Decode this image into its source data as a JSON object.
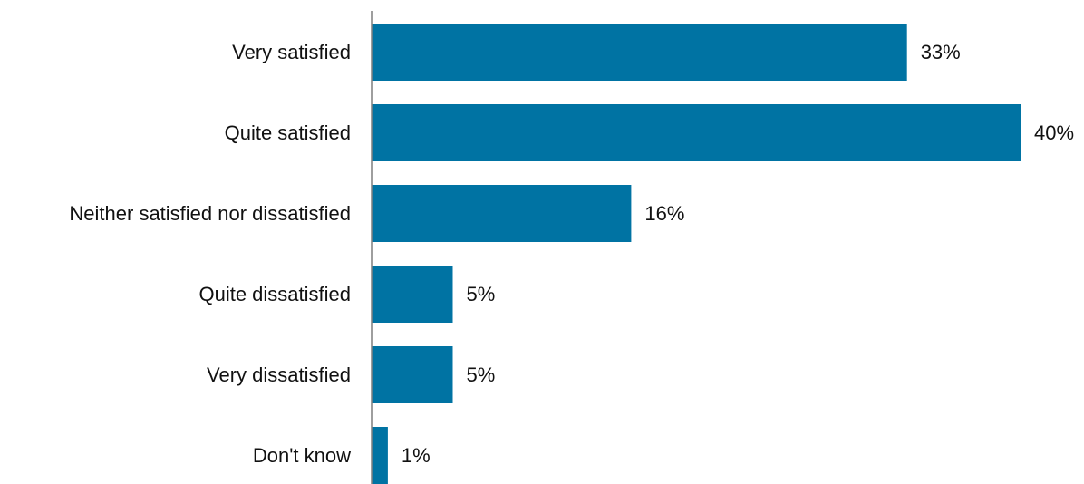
{
  "chart_data": {
    "type": "bar",
    "orientation": "horizontal",
    "categories": [
      "Very satisfied",
      "Quite satisfied",
      "Neither satisfied nor dissatisfied",
      "Quite dissatisfied",
      "Very dissatisfied",
      "Don't know"
    ],
    "values": [
      33,
      40,
      16,
      5,
      5,
      1
    ],
    "value_labels": [
      "33%",
      "40%",
      "16%",
      "5%",
      "5%",
      "1%"
    ],
    "unit": "%",
    "xlim": [
      0,
      40
    ],
    "grid": false,
    "legend": "none",
    "bar_color": "#0073a3"
  }
}
